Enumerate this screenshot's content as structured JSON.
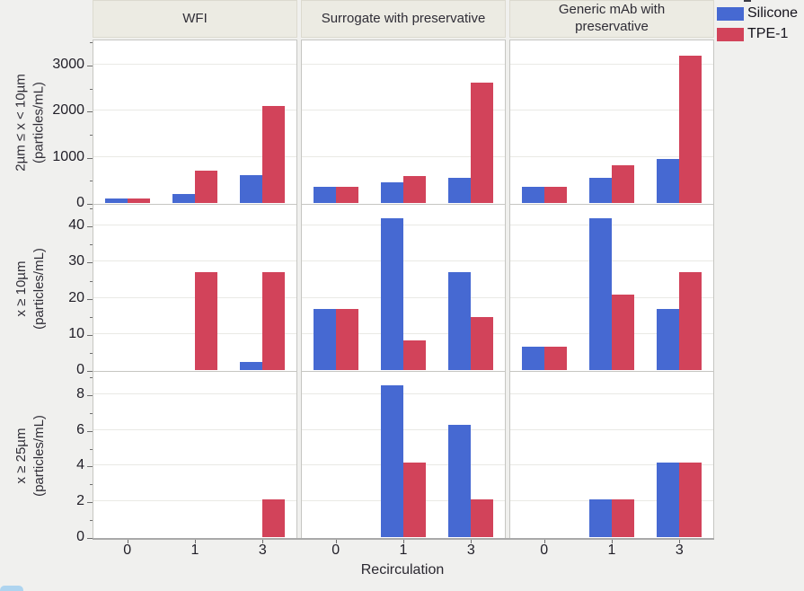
{
  "page": {
    "background": "#f0f0ee"
  },
  "legend": {
    "items": [
      {
        "label": "Silicone",
        "color": "#4669D2"
      },
      {
        "label": "TPE-1",
        "color": "#D2435A"
      }
    ]
  },
  "chart_data": {
    "type": "bar",
    "title": "",
    "xlabel": "Recirculation",
    "x_categories": [
      "0",
      "1",
      "3"
    ],
    "col_facets": [
      "WFI",
      "Surrogate with preservative",
      "Generic mAb with\npreservative"
    ],
    "row_facets": [
      {
        "label": "2µm ≤ x < 10µm\n(particles/mL)",
        "ylim": [
          0,
          3540
        ],
        "major_ticks": [
          0,
          1000,
          2000,
          3000
        ],
        "minor_step": 500
      },
      {
        "label": "x ≥ 10µm\n(particles/mL)",
        "ylim": [
          0,
          46
        ],
        "major_ticks": [
          0,
          10,
          20,
          30,
          40
        ],
        "minor_step": 5
      },
      {
        "label": "x ≥ 25µm\n(particles/mL)",
        "ylim": [
          0,
          9.3
        ],
        "major_ticks": [
          0,
          2,
          4,
          6,
          8
        ],
        "minor_step": 1
      }
    ],
    "series": [
      {
        "name": "Silicone",
        "color": "#4669D2",
        "values": [
          [
            [
              100,
              200,
              600
            ],
            [
              350,
              450,
              550
            ],
            [
              350,
              550,
              950
            ]
          ],
          [
            [
              0,
              0,
              2.2
            ],
            [
              17,
              42,
              27
            ],
            [
              6.5,
              42,
              17
            ]
          ],
          [
            [
              0,
              0,
              0
            ],
            [
              0,
              8.5,
              6.3
            ],
            [
              0,
              2.1,
              4.2
            ]
          ]
        ]
      },
      {
        "name": "TPE-1",
        "color": "#D2435A",
        "values": [
          [
            [
              100,
              700,
              2100
            ],
            [
              350,
              575,
              2600
            ],
            [
              350,
              825,
              3200
            ]
          ],
          [
            [
              0,
              27,
              27
            ],
            [
              17,
              8.3,
              14.8
            ],
            [
              6.5,
              21,
              27
            ]
          ],
          [
            [
              0,
              0,
              2.1
            ],
            [
              0,
              4.2,
              2.1
            ],
            [
              0,
              2.1,
              4.2
            ]
          ]
        ]
      }
    ],
    "legend_position": "top-right",
    "grid": "horizontal-major"
  }
}
